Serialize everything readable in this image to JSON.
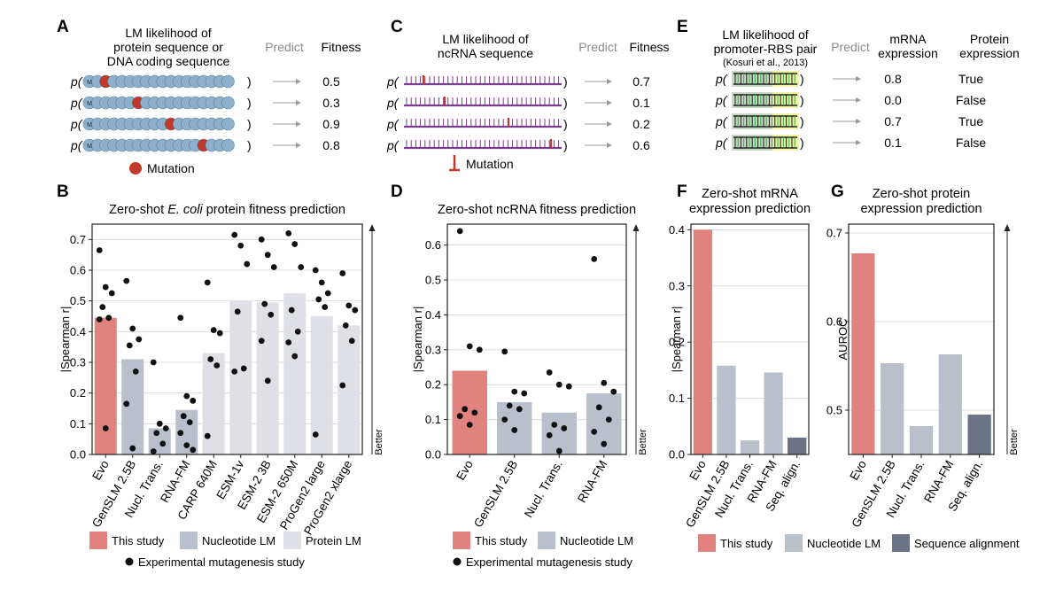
{
  "colors": {
    "evo": "#e0837f",
    "nucleotide": "#b9bfcb",
    "protein": "#dfe0e6",
    "alignment": "#6c7386",
    "dot": "#111111",
    "mutation": "#c0392b",
    "seqbead": "#8fb0cc",
    "rna_line": "#7a3f8a",
    "gray_text": "#8a8a8a"
  },
  "panelA": {
    "letter": "A",
    "header_line1": "LM likelihood of",
    "header_line2": "protein sequence or",
    "header_line3": "DNA coding sequence",
    "predict_label": "Predict",
    "fitness_label": "Fitness",
    "p_label": "p(",
    "close_label": ")",
    "bead_start": "M",
    "mutation_legend": "Mutation",
    "fitness_values": [
      "0.5",
      "0.3",
      "0.9",
      "0.8"
    ]
  },
  "panelC": {
    "letter": "C",
    "header_line1": "LM likelihood of",
    "header_line2": "ncRNA sequence",
    "predict_label": "Predict",
    "fitness_label": "Fitness",
    "p_label": "p(",
    "close_label": ")",
    "mutation_legend": "Mutation",
    "fitness_values": [
      "0.7",
      "0.1",
      "0.2",
      "0.6"
    ]
  },
  "panelE": {
    "letter": "E",
    "header_line1": "LM likelihood of",
    "header_line2": "promoter-RBS pair",
    "header_line3": "(Kosuri et al., 2013)",
    "predict_label": "Predict",
    "mrna_line1": "mRNA",
    "mrna_line2": "expression",
    "protein_line1": "Protein",
    "protein_line2": "expression",
    "p_label": "p(",
    "close_label": ")",
    "mrna_values": [
      "0.8",
      "0.0",
      "0.7",
      "0.1"
    ],
    "protein_values": [
      "True",
      "False",
      "True",
      "False"
    ]
  },
  "legends": {
    "this_study": "This study",
    "nucleotide_lm": "Nucleotide LM",
    "protein_lm": "Protein LM",
    "sequence_alignment": "Sequence alignment",
    "experimental": "Experimental mutagenesis study",
    "better": "Better"
  },
  "chart_data": [
    {
      "panel": "B",
      "type": "bar",
      "title_pre": "Zero-shot ",
      "title_italic": "E. coli",
      "title_post": " protein fitness prediction",
      "xlabel": "",
      "ylabel": "|Spearman r|",
      "ylim": [
        0,
        0.75
      ],
      "yticks": [
        "0.0",
        "0.1",
        "0.2",
        "0.3",
        "0.4",
        "0.5",
        "0.6",
        "0.7"
      ],
      "grid": true,
      "categories": [
        "Evo",
        "GenSLM 2.5B",
        "Nucl. Trans.",
        "RNA-FM",
        "CARP 640M",
        "ESM-1v",
        "ESM-2 3B",
        "ESM-2 650M",
        "ProGen2 large",
        "ProGen2 xlarge"
      ],
      "groups": [
        "evo",
        "nucleotide",
        "nucleotide",
        "nucleotide",
        "protein",
        "protein",
        "protein",
        "protein",
        "protein",
        "protein"
      ],
      "values": [
        0.445,
        0.31,
        0.085,
        0.145,
        0.33,
        0.5,
        0.495,
        0.525,
        0.45,
        0.42
      ],
      "points": [
        [
          0.665,
          0.545,
          0.525,
          0.48,
          0.445,
          0.44,
          0.085
        ],
        [
          0.565,
          0.41,
          0.375,
          0.355,
          0.27,
          0.165,
          0.02
        ],
        [
          0.3,
          0.1,
          0.085,
          0.07,
          0.035,
          0.01
        ],
        [
          0.445,
          0.19,
          0.175,
          0.125,
          0.105,
          0.07,
          0.03,
          0.015
        ],
        [
          0.56,
          0.405,
          0.395,
          0.31,
          0.29,
          0.06
        ],
        [
          0.715,
          0.68,
          0.62,
          0.465,
          0.28,
          0.27
        ],
        [
          0.7,
          0.65,
          0.61,
          0.49,
          0.455,
          0.37,
          0.24
        ],
        [
          0.72,
          0.685,
          0.61,
          0.47,
          0.4,
          0.365,
          0.32
        ],
        [
          0.6,
          0.56,
          0.525,
          0.505,
          0.48,
          0.065
        ],
        [
          0.59,
          0.485,
          0.47,
          0.42,
          0.37,
          0.225
        ]
      ]
    },
    {
      "panel": "D",
      "type": "bar",
      "title": "Zero-shot ncRNA fitness prediction",
      "xlabel": "",
      "ylabel": "|Spearman r|",
      "ylim": [
        0,
        0.66
      ],
      "yticks": [
        "0.0",
        "0.1",
        "0.2",
        "0.3",
        "0.4",
        "0.5",
        "0.6"
      ],
      "grid": true,
      "categories": [
        "Evo",
        "GenSLM 2.5B",
        "Nucl. Trans.",
        "RNA-FM"
      ],
      "groups": [
        "evo",
        "nucleotide",
        "nucleotide",
        "nucleotide"
      ],
      "values": [
        0.24,
        0.15,
        0.12,
        0.175
      ],
      "points": [
        [
          0.64,
          0.31,
          0.3,
          0.13,
          0.12,
          0.11,
          0.085
        ],
        [
          0.295,
          0.18,
          0.175,
          0.14,
          0.13,
          0.1,
          0.07
        ],
        [
          0.235,
          0.2,
          0.195,
          0.085,
          0.075,
          0.055,
          0.01
        ],
        [
          0.56,
          0.205,
          0.18,
          0.135,
          0.1,
          0.065,
          0.03
        ]
      ]
    },
    {
      "panel": "F",
      "type": "bar",
      "title_line1": "Zero-shot mRNA",
      "title_line2": "expression prediction",
      "xlabel": "",
      "ylabel": "|Spearman r|",
      "ylim": [
        0,
        0.41
      ],
      "yticks": [
        "0.0",
        "0.1",
        "0.2",
        "0.3",
        "0.4"
      ],
      "grid": true,
      "categories": [
        "Evo",
        "GenSLM 2.5B",
        "Nucl. Trans.",
        "RNA-FM",
        "Seq. align."
      ],
      "groups": [
        "evo",
        "nucleotide",
        "nucleotide",
        "nucleotide",
        "alignment"
      ],
      "values": [
        0.4,
        0.158,
        0.025,
        0.146,
        0.03
      ]
    },
    {
      "panel": "G",
      "type": "bar",
      "title_line1": "Zero-shot protein",
      "title_line2": "expression prediction",
      "xlabel": "",
      "ylabel": "AUROC",
      "ylim": [
        0.45,
        0.71
      ],
      "yticks": [
        "0.5",
        "0.6",
        "0.7"
      ],
      "grid": true,
      "categories": [
        "Evo",
        "GenSLM 2.5B",
        "Nucl. Trans.",
        "RNA-FM",
        "Seq. align."
      ],
      "groups": [
        "evo",
        "nucleotide",
        "nucleotide",
        "nucleotide",
        "alignment"
      ],
      "values": [
        0.677,
        0.553,
        0.482,
        0.563,
        0.495
      ]
    }
  ]
}
